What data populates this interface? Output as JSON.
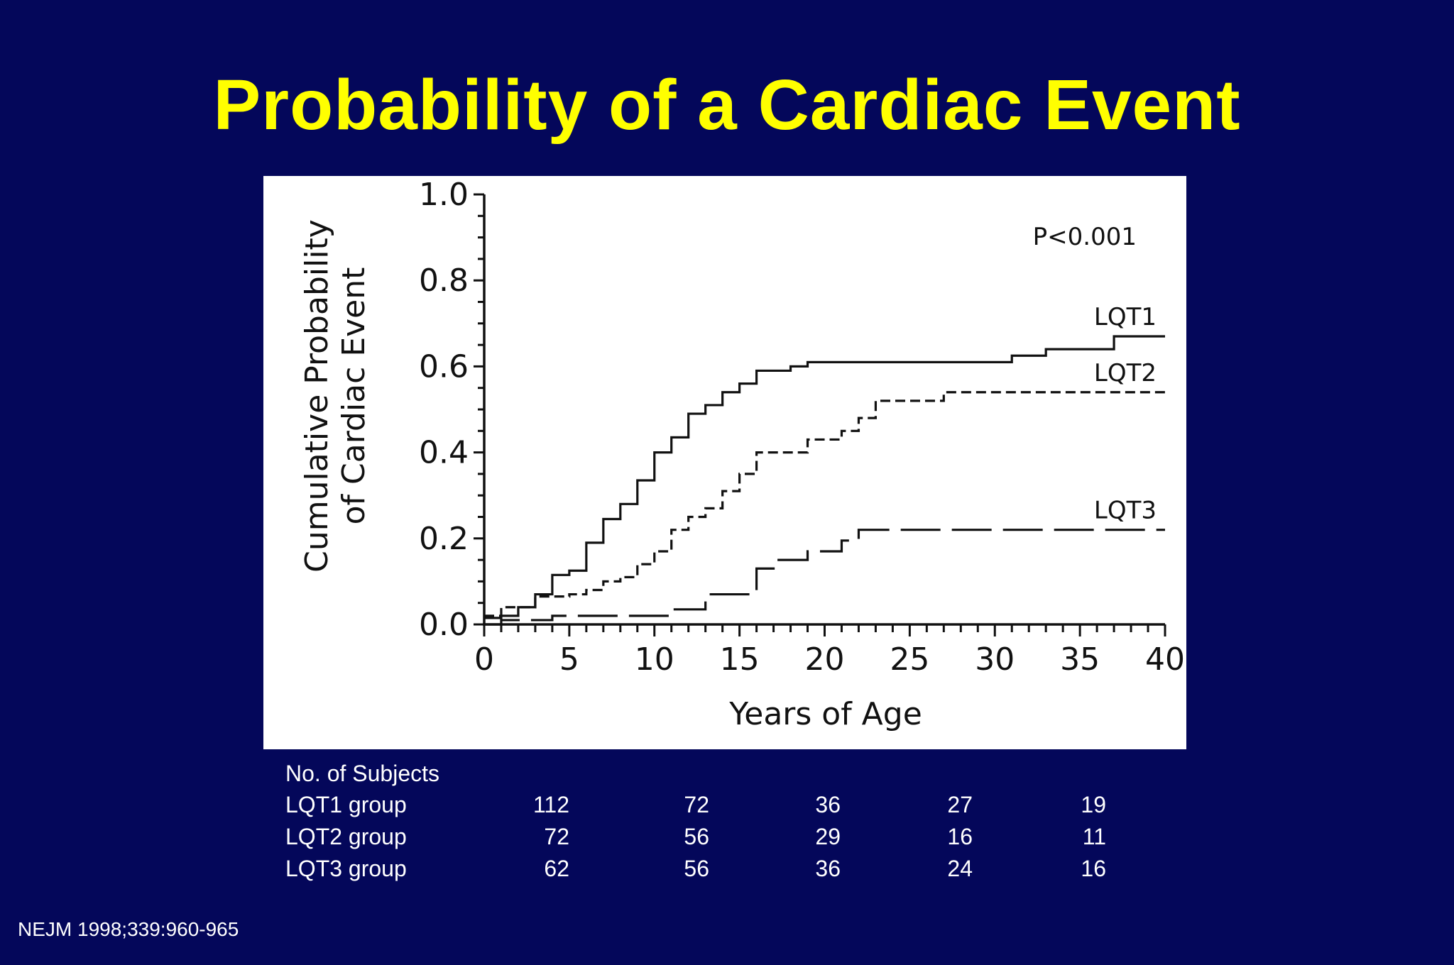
{
  "slide": {
    "title": "Probability of a Cardiac Event",
    "citation": "NEJM 1998;339:960-965",
    "background_color": "#04075a",
    "title_color": "#ffff00"
  },
  "chart_data": {
    "type": "line",
    "step": true,
    "ylabel_line1": "Cumulative Probability",
    "ylabel_line2": "of Cardiac Event",
    "xlabel": "Years of Age",
    "xlim": [
      0,
      40
    ],
    "ylim": [
      0,
      1.0
    ],
    "x_ticks": [
      "0",
      "5",
      "10",
      "15",
      "20",
      "25",
      "30",
      "35",
      "40"
    ],
    "y_ticks": [
      "0.0",
      "0.2",
      "0.4",
      "0.6",
      "0.8",
      "1.0"
    ],
    "annotation": "P<0.001",
    "grid": false,
    "legend": "inline-right",
    "series": [
      {
        "name": "LQT1",
        "style": "solid",
        "x": [
          0,
          1,
          2,
          3,
          4,
          5,
          6,
          7,
          8,
          9,
          10,
          11,
          12,
          13,
          14,
          15,
          16,
          18,
          19,
          31,
          33,
          37,
          40
        ],
        "y": [
          0.015,
          0.02,
          0.04,
          0.07,
          0.115,
          0.125,
          0.19,
          0.245,
          0.28,
          0.335,
          0.4,
          0.435,
          0.49,
          0.51,
          0.54,
          0.56,
          0.59,
          0.6,
          0.61,
          0.625,
          0.64,
          0.67,
          0.67
        ]
      },
      {
        "name": "LQT2",
        "style": "dashed",
        "x": [
          0,
          1,
          3,
          5,
          6,
          7,
          8,
          9,
          10,
          11,
          12,
          13,
          14,
          15,
          16,
          19,
          21,
          22,
          23,
          27,
          40
        ],
        "y": [
          0.02,
          0.04,
          0.065,
          0.07,
          0.08,
          0.1,
          0.11,
          0.14,
          0.17,
          0.22,
          0.25,
          0.27,
          0.31,
          0.35,
          0.4,
          0.43,
          0.45,
          0.48,
          0.52,
          0.54,
          0.54
        ]
      },
      {
        "name": "LQT3",
        "style": "long-dash",
        "x": [
          0,
          1,
          4,
          11,
          13,
          16,
          17,
          19,
          21,
          22,
          40
        ],
        "y": [
          0.0,
          0.01,
          0.02,
          0.035,
          0.07,
          0.13,
          0.15,
          0.17,
          0.195,
          0.22,
          0.22
        ]
      }
    ]
  },
  "subjects_table": {
    "header": "No. of Subjects",
    "rows": [
      {
        "label": "LQT1 group",
        "counts": [
          "112",
          "72",
          "36",
          "27",
          "19"
        ]
      },
      {
        "label": "LQT2 group",
        "counts": [
          "72",
          "56",
          "29",
          "16",
          "11"
        ]
      },
      {
        "label": "LQT3 group",
        "counts": [
          "62",
          "56",
          "36",
          "24",
          "16"
        ]
      }
    ]
  }
}
